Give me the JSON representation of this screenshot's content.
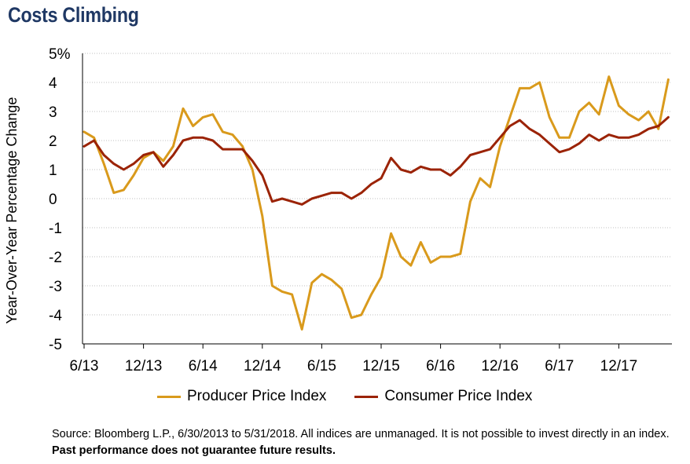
{
  "title": "Costs Climbing",
  "footnote": {
    "text": "Source: Bloomberg L.P., 6/30/2013 to 5/31/2018. All indices are unmanaged. It is not possible to invest directly in an index. ",
    "bold": "Past performance does not guarantee future results."
  },
  "colors": {
    "ppi": "#d99a1c",
    "cpi": "#9b2306",
    "axis": "#000000",
    "grid": "#bfbfbf",
    "title": "#1f3864"
  },
  "chart_data": {
    "type": "line",
    "title": "Costs Climbing",
    "ylabel": "Year-Over-Year Percentage Change",
    "xlabel": "",
    "ylim": [
      -5,
      5
    ],
    "yticks": [
      "5%",
      "4",
      "3",
      "2",
      "1",
      "0",
      "-1",
      "-2",
      "-3",
      "-4",
      "-5"
    ],
    "xticks": [
      "6/13",
      "12/13",
      "6/14",
      "12/14",
      "6/15",
      "12/15",
      "6/16",
      "12/16",
      "6/17",
      "12/17"
    ],
    "grid": "horizontal",
    "legend_position": "bottom",
    "series": [
      {
        "name": "Producer Price Index",
        "color": "#d99a1c",
        "values": [
          2.3,
          2.1,
          1.2,
          0.2,
          0.3,
          0.8,
          1.4,
          1.6,
          1.3,
          1.8,
          3.1,
          2.5,
          2.8,
          2.9,
          2.3,
          2.2,
          1.8,
          1.0,
          -0.6,
          -3.0,
          -3.2,
          -3.3,
          -4.5,
          -2.9,
          -2.6,
          -2.8,
          -3.1,
          -4.1,
          -4.0,
          -3.3,
          -2.7,
          -1.2,
          -2.0,
          -2.3,
          -1.5,
          -2.2,
          -2.0,
          -2.0,
          -1.9,
          -0.1,
          0.7,
          0.4,
          1.8,
          2.8,
          3.8,
          3.8,
          4.0,
          2.8,
          2.1,
          2.1,
          3.0,
          3.3,
          2.9,
          4.2,
          3.2,
          2.9,
          2.7,
          3.0,
          2.4,
          4.1
        ]
      },
      {
        "name": "Consumer Price Index",
        "color": "#9b2306",
        "values": [
          1.8,
          2.0,
          1.5,
          1.2,
          1.0,
          1.2,
          1.5,
          1.6,
          1.1,
          1.5,
          2.0,
          2.1,
          2.1,
          2.0,
          1.7,
          1.7,
          1.7,
          1.3,
          0.8,
          -0.1,
          0.0,
          -0.1,
          -0.2,
          0.0,
          0.1,
          0.2,
          0.2,
          0.0,
          0.2,
          0.5,
          0.7,
          1.4,
          1.0,
          0.9,
          1.1,
          1.0,
          1.0,
          0.8,
          1.1,
          1.5,
          1.6,
          1.7,
          2.1,
          2.5,
          2.7,
          2.4,
          2.2,
          1.9,
          1.6,
          1.7,
          1.9,
          2.2,
          2.0,
          2.2,
          2.1,
          2.1,
          2.2,
          2.4,
          2.5,
          2.8
        ]
      }
    ]
  }
}
